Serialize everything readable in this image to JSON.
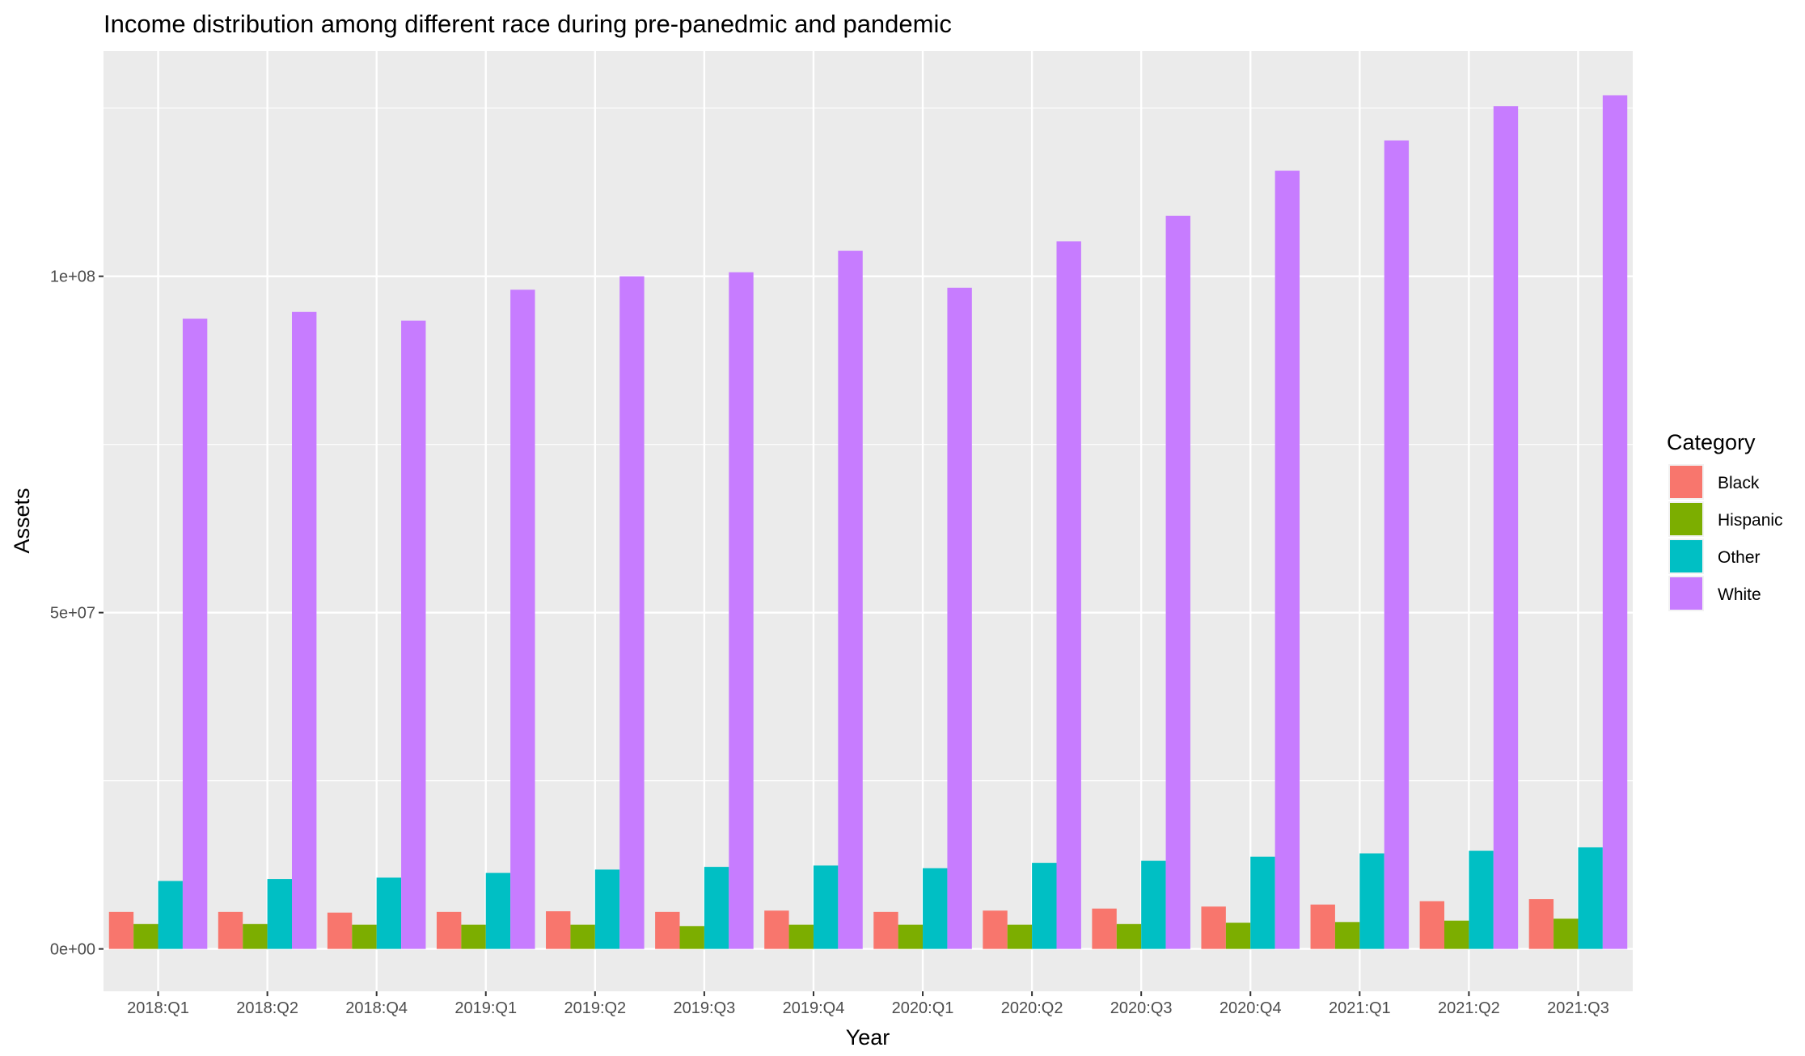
{
  "chart_data": {
    "type": "bar",
    "title": "Income distribution among different race during pre-panedmic and pandemic",
    "xlabel": "Year",
    "ylabel": "Assets",
    "categories": [
      "2018:Q1",
      "2018:Q2",
      "2018:Q4",
      "2019:Q1",
      "2019:Q2",
      "2019:Q3",
      "2019:Q4",
      "2020:Q1",
      "2020:Q2",
      "2020:Q3",
      "2020:Q4",
      "2021:Q1",
      "2021:Q2",
      "2021:Q3"
    ],
    "yticks": [
      0,
      50000000,
      100000000
    ],
    "ytick_labels": [
      "0e+00",
      "5e+07",
      "1e+08"
    ],
    "ylim": [
      -6300000,
      133500000
    ],
    "grid": true,
    "legend": {
      "title": "Category",
      "position": "right"
    },
    "series": [
      {
        "name": "Black",
        "color": "#F8766D",
        "values": [
          5500000,
          5500000,
          5400000,
          5500000,
          5600000,
          5500000,
          5700000,
          5500000,
          5700000,
          6000000,
          6300000,
          6600000,
          7100000,
          7400000
        ]
      },
      {
        "name": "Hispanic",
        "color": "#7CAE00",
        "values": [
          3700000,
          3700000,
          3600000,
          3600000,
          3600000,
          3400000,
          3600000,
          3600000,
          3600000,
          3700000,
          3900000,
          4000000,
          4200000,
          4500000
        ]
      },
      {
        "name": "Other",
        "color": "#00BFC4",
        "values": [
          10100000,
          10400000,
          10600000,
          11300000,
          11800000,
          12200000,
          12400000,
          12000000,
          12800000,
          13100000,
          13700000,
          14200000,
          14600000,
          15100000
        ]
      },
      {
        "name": "White",
        "color": "#C77CFF",
        "values": [
          93700000,
          94700000,
          93400000,
          98000000,
          100000000,
          100600000,
          103800000,
          98300000,
          105200000,
          109000000,
          115700000,
          120200000,
          125300000,
          126900000
        ]
      }
    ]
  },
  "colors": {
    "panel_background": "#EBEBEB",
    "grid_major": "#FFFFFF",
    "tick_text": "#4D4D4D"
  }
}
